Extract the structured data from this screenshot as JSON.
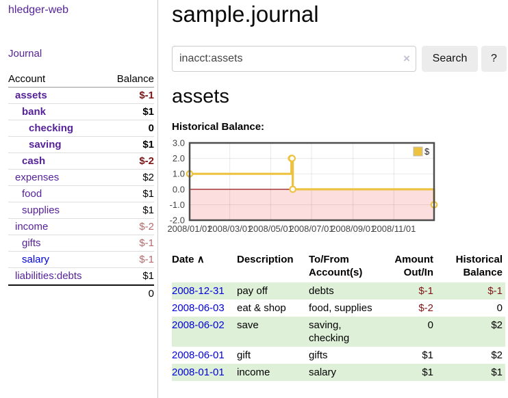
{
  "app": {
    "brand": "hledger-web",
    "nav_journal": "Journal"
  },
  "sidebar": {
    "headers": {
      "account": "Account",
      "balance": "Balance"
    },
    "rows": [
      {
        "name": "assets",
        "balance": "$-1",
        "level": 1,
        "bold": true,
        "negative": true,
        "blue": false
      },
      {
        "name": "bank",
        "balance": "$1",
        "level": 2,
        "bold": true,
        "negative": false,
        "blue": false
      },
      {
        "name": "checking",
        "balance": "0",
        "level": 3,
        "bold": true,
        "negative": false,
        "blue": false
      },
      {
        "name": "saving",
        "balance": "$1",
        "level": 3,
        "bold": true,
        "negative": false,
        "blue": false
      },
      {
        "name": "cash",
        "balance": "$-2",
        "level": 2,
        "bold": true,
        "negative": true,
        "blue": false
      },
      {
        "name": "expenses",
        "balance": "$2",
        "level": 1,
        "bold": false,
        "negative": false,
        "blue": false
      },
      {
        "name": "food",
        "balance": "$1",
        "level": 2,
        "bold": false,
        "negative": false,
        "blue": false
      },
      {
        "name": "supplies",
        "balance": "$1",
        "level": 2,
        "bold": false,
        "negative": false,
        "blue": false
      },
      {
        "name": "income",
        "balance": "$-2",
        "level": 1,
        "bold": false,
        "negative": true,
        "blue": false
      },
      {
        "name": "gifts",
        "balance": "$-1",
        "level": 2,
        "bold": false,
        "negative": true,
        "blue": false
      },
      {
        "name": "salary",
        "balance": "$-1",
        "level": 2,
        "bold": false,
        "negative": true,
        "blue": true
      },
      {
        "name": "liabilities:debts",
        "balance": "$1",
        "level": 1,
        "bold": false,
        "negative": false,
        "blue": false
      }
    ],
    "total": "0"
  },
  "main": {
    "title": "sample.journal",
    "search": {
      "value": "inacct:assets",
      "clear_icon": "×",
      "button_label": "Search",
      "help_label": "?"
    },
    "account_heading": "assets",
    "chart_label": "Historical Balance:"
  },
  "chart_data": {
    "type": "line",
    "step": true,
    "title": "Historical Balance",
    "legend": {
      "label": "$",
      "position": "top-right"
    },
    "xlim": [
      "2008-01-01",
      "2008-12-31"
    ],
    "ylim": [
      -2,
      3
    ],
    "grid": true,
    "yticks": [
      {
        "value": 3,
        "label": "3.0"
      },
      {
        "value": 2,
        "label": "2.0"
      },
      {
        "value": 1,
        "label": "1.0"
      },
      {
        "value": 0,
        "label": "0.0"
      },
      {
        "value": -1,
        "label": "-1.0"
      },
      {
        "value": -2,
        "label": "-2.0"
      }
    ],
    "xticks": [
      {
        "date": "2008-01-01",
        "label": "2008/01/01"
      },
      {
        "date": "2008-03-01",
        "label": "2008/03/01"
      },
      {
        "date": "2008-05-01",
        "label": "2008/05/01"
      },
      {
        "date": "2008-07-01",
        "label": "2008/07/01"
      },
      {
        "date": "2008-09-01",
        "label": "2008/09/01"
      },
      {
        "date": "2008-11-01",
        "label": "2008/11/01"
      }
    ],
    "series": [
      {
        "name": "$",
        "color": "#edc240",
        "points": [
          {
            "date": "2008-01-01",
            "value": 1
          },
          {
            "date": "2008-06-01",
            "value": 2
          },
          {
            "date": "2008-06-02",
            "value": 2
          },
          {
            "date": "2008-06-03",
            "value": 0
          },
          {
            "date": "2008-12-31",
            "value": -1
          }
        ]
      }
    ],
    "negative_fill": "#fcdede",
    "zero_line_color": "#8b0000",
    "plot_border_color": "#4d4d4d"
  },
  "register": {
    "headers": {
      "date": "Date",
      "sort_icon": "∧",
      "description": "Description",
      "tofrom": "To/From Account(s)",
      "amount": "Amount Out/In",
      "balance": "Historical Balance"
    },
    "rows": [
      {
        "date": "2008-12-31",
        "description": "pay off",
        "accounts": "debts",
        "amount": "$-1",
        "amount_negative": true,
        "balance": "$-1",
        "balance_negative": true
      },
      {
        "date": "2008-06-03",
        "description": "eat & shop",
        "accounts": "food, supplies",
        "amount": "$-2",
        "amount_negative": true,
        "balance": "0",
        "balance_negative": false
      },
      {
        "date": "2008-06-02",
        "description": "save",
        "accounts": "saving, checking",
        "amount": "0",
        "amount_negative": false,
        "balance": "$2",
        "balance_negative": false
      },
      {
        "date": "2008-06-01",
        "description": "gift",
        "accounts": "gifts",
        "amount": "$1",
        "amount_negative": false,
        "balance": "$2",
        "balance_negative": false
      },
      {
        "date": "2008-01-01",
        "description": "income",
        "accounts": "salary",
        "amount": "$1",
        "amount_negative": false,
        "balance": "$1",
        "balance_negative": false
      }
    ]
  },
  "colors": {
    "link_purple": "#552299",
    "link_blue": "#0000dd",
    "negative_bold": "#7e1515",
    "negative_soft": "#b36b6b",
    "row_green": "#dff0d8",
    "button_bg": "#ececec",
    "series_gold": "#edc240"
  }
}
